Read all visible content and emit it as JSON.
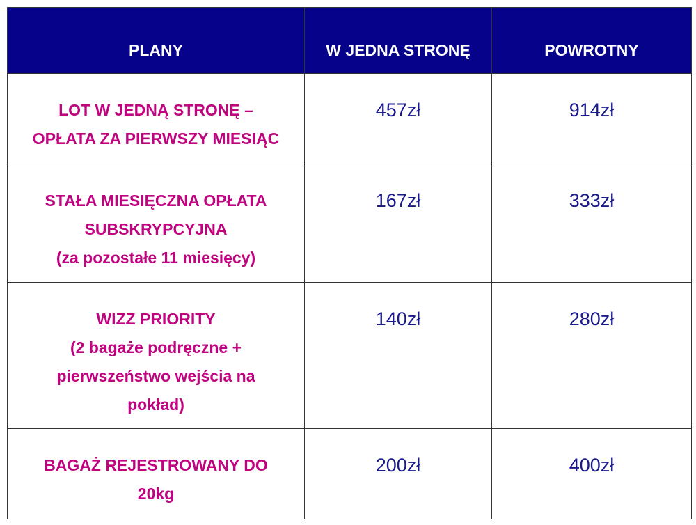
{
  "colors": {
    "header_bg": "#06038a",
    "plan_text": "#c0037f",
    "value_text": "#1a1a8c"
  },
  "headers": [
    "PLANY",
    "W JEDNA STRONĘ",
    "POWROTNY"
  ],
  "rows": [
    {
      "plan": [
        "LOT W JEDNĄ STRONĘ –",
        "OPŁATA ZA PIERWSZY MIESIĄC"
      ],
      "one_way": "457zł",
      "return": "914zł"
    },
    {
      "plan": [
        "STAŁA MIESIĘCZNA OPŁATA",
        "SUBSKRYPCYJNA",
        "(za pozostałe 11 miesięcy)"
      ],
      "one_way": "167zł",
      "return": "333zł"
    },
    {
      "plan": [
        "WIZZ PRIORITY",
        "(2 bagaże podręczne +",
        "pierwszeństwo wejścia na",
        "pokład)"
      ],
      "one_way": "140zł",
      "return": "280zł"
    },
    {
      "plan": [
        "BAGAŻ REJESTROWANY DO",
        "20kg"
      ],
      "one_way": "200zł",
      "return": "400zł"
    }
  ]
}
